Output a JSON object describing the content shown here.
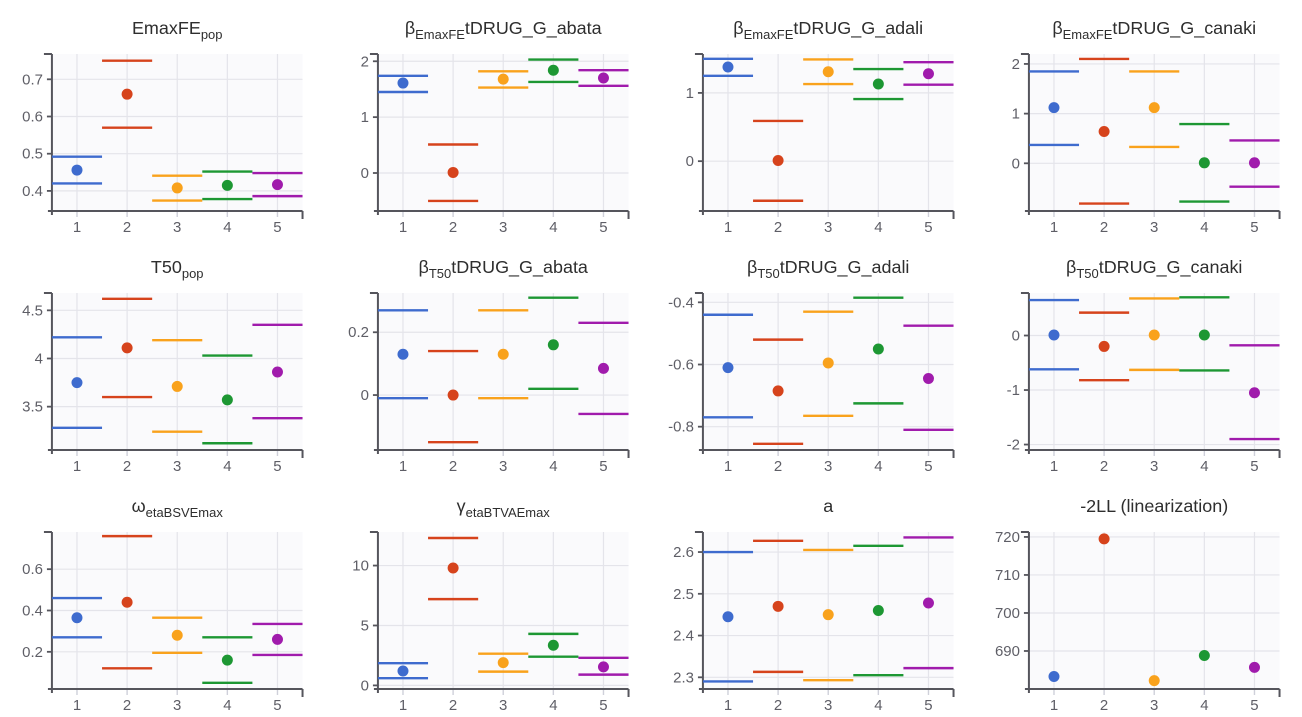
{
  "palette": {
    "group_colors": [
      "#3e6bce",
      "#d6431c",
      "#f9a21c",
      "#1d9733",
      "#a01bac"
    ],
    "group_color_order_note": "colors for runs x=1..5",
    "panel_bg": "#fafafc",
    "grid": "#e4e4ea",
    "x_tick": "#cfd0da",
    "axis": "#55555c",
    "tick_label": "#5e5e66",
    "title": "#2e2e2e"
  },
  "layout_hints": {
    "rows": 3,
    "columns": 4,
    "grid": "on",
    "legend": "none",
    "error_bar_style": "horizontal caps spanning run slot"
  },
  "chart_data": [
    {
      "id": "EmaxFE_pop",
      "type": "scatter",
      "title_parts": [
        {
          "text": "EmaxFE"
        },
        {
          "text": "pop",
          "sub": true
        }
      ],
      "xlim": [
        0.5,
        5.5
      ],
      "xticks": [
        1,
        2,
        3,
        4,
        5
      ],
      "xtick_labels": [
        "1",
        "2",
        "3",
        "4",
        "5"
      ],
      "ylim": [
        0.346,
        0.768
      ],
      "yticks": [
        0.4,
        0.5,
        0.6,
        0.7
      ],
      "ytick_labels": [
        "0.4",
        "0.5",
        "0.6",
        "0.7"
      ],
      "points": [
        {
          "x": 1,
          "est": 0.456,
          "lower": 0.42,
          "upper": 0.492
        },
        {
          "x": 2,
          "est": 0.66,
          "lower": 0.57,
          "upper": 0.75
        },
        {
          "x": 3,
          "est": 0.408,
          "lower": 0.374,
          "upper": 0.441
        },
        {
          "x": 4,
          "est": 0.415,
          "lower": 0.378,
          "upper": 0.452
        },
        {
          "x": 5,
          "est": 0.417,
          "lower": 0.386,
          "upper": 0.448
        }
      ]
    },
    {
      "id": "beta_EmaxFE_tDRUG_G_abata",
      "type": "scatter",
      "title_parts": [
        {
          "text": "β"
        },
        {
          "text": "EmaxFE",
          "sub": true
        },
        {
          "text": "tDRUG_G_abata"
        }
      ],
      "xlim": [
        0.5,
        5.5
      ],
      "xticks": [
        1,
        2,
        3,
        4,
        5
      ],
      "xtick_labels": [
        "1",
        "2",
        "3",
        "4",
        "5"
      ],
      "ylim": [
        -0.68,
        2.13
      ],
      "yticks": [
        0,
        1,
        2
      ],
      "ytick_labels": [
        "0",
        "1",
        "2"
      ],
      "points": [
        {
          "x": 1,
          "est": 1.61,
          "lower": 1.45,
          "upper": 1.74
        },
        {
          "x": 2,
          "est": 0.01,
          "lower": -0.5,
          "upper": 0.51
        },
        {
          "x": 3,
          "est": 1.68,
          "lower": 1.53,
          "upper": 1.82
        },
        {
          "x": 4,
          "est": 1.84,
          "lower": 1.63,
          "upper": 2.03
        },
        {
          "x": 5,
          "est": 1.7,
          "lower": 1.56,
          "upper": 1.84
        }
      ]
    },
    {
      "id": "beta_EmaxFE_tDRUG_G_adali",
      "type": "scatter",
      "title_parts": [
        {
          "text": "β"
        },
        {
          "text": "EmaxFE",
          "sub": true
        },
        {
          "text": "tDRUG_G_adali"
        }
      ],
      "xlim": [
        0.5,
        5.5
      ],
      "xticks": [
        1,
        2,
        3,
        4,
        5
      ],
      "xtick_labels": [
        "1",
        "2",
        "3",
        "4",
        "5"
      ],
      "ylim": [
        -0.73,
        1.57
      ],
      "yticks": [
        0,
        1
      ],
      "ytick_labels": [
        "0",
        "1"
      ],
      "points": [
        {
          "x": 1,
          "est": 1.38,
          "lower": 1.25,
          "upper": 1.5
        },
        {
          "x": 2,
          "est": 0.01,
          "lower": -0.58,
          "upper": 0.59
        },
        {
          "x": 3,
          "est": 1.31,
          "lower": 1.13,
          "upper": 1.49
        },
        {
          "x": 4,
          "est": 1.13,
          "lower": 0.91,
          "upper": 1.35
        },
        {
          "x": 5,
          "est": 1.28,
          "lower": 1.12,
          "upper": 1.45
        }
      ]
    },
    {
      "id": "beta_EmaxFE_tDRUG_G_canaki",
      "type": "scatter",
      "title_parts": [
        {
          "text": "β"
        },
        {
          "text": "EmaxFE",
          "sub": true
        },
        {
          "text": "tDRUG_G_canaki"
        }
      ],
      "xlim": [
        0.5,
        5.5
      ],
      "xticks": [
        1,
        2,
        3,
        4,
        5
      ],
      "xtick_labels": [
        "1",
        "2",
        "3",
        "4",
        "5"
      ],
      "ylim": [
        -0.96,
        2.2
      ],
      "yticks": [
        0,
        1,
        2
      ],
      "ytick_labels": [
        "0",
        "1",
        "2"
      ],
      "points": [
        {
          "x": 1,
          "est": 1.12,
          "lower": 0.37,
          "upper": 1.85
        },
        {
          "x": 2,
          "est": 0.64,
          "lower": -0.81,
          "upper": 2.1
        },
        {
          "x": 3,
          "est": 1.12,
          "lower": 0.33,
          "upper": 1.85
        },
        {
          "x": 4,
          "est": 0.01,
          "lower": -0.77,
          "upper": 0.79
        },
        {
          "x": 5,
          "est": 0.01,
          "lower": -0.47,
          "upper": 0.46
        }
      ]
    },
    {
      "id": "T50_pop",
      "type": "scatter",
      "title_parts": [
        {
          "text": "T50"
        },
        {
          "text": "pop",
          "sub": true
        }
      ],
      "xlim": [
        0.5,
        5.5
      ],
      "xticks": [
        1,
        2,
        3,
        4,
        5
      ],
      "xtick_labels": [
        "1",
        "2",
        "3",
        "4",
        "5"
      ],
      "ylim": [
        3.05,
        4.68
      ],
      "yticks": [
        3.5,
        4,
        4.5
      ],
      "ytick_labels": [
        "3.5",
        "4",
        "4.5"
      ],
      "points": [
        {
          "x": 1,
          "est": 3.75,
          "lower": 3.28,
          "upper": 4.22
        },
        {
          "x": 2,
          "est": 4.11,
          "lower": 3.6,
          "upper": 4.62
        },
        {
          "x": 3,
          "est": 3.71,
          "lower": 3.24,
          "upper": 4.19
        },
        {
          "x": 4,
          "est": 3.57,
          "lower": 3.12,
          "upper": 4.03
        },
        {
          "x": 5,
          "est": 3.86,
          "lower": 3.38,
          "upper": 4.35
        }
      ]
    },
    {
      "id": "beta_T50_tDRUG_G_abata",
      "type": "scatter",
      "title_parts": [
        {
          "text": "β"
        },
        {
          "text": "T50",
          "sub": true
        },
        {
          "text": "tDRUG_G_abata"
        }
      ],
      "xlim": [
        0.5,
        5.5
      ],
      "xticks": [
        1,
        2,
        3,
        4,
        5
      ],
      "xtick_labels": [
        "1",
        "2",
        "3",
        "4",
        "5"
      ],
      "ylim": [
        -0.175,
        0.325
      ],
      "yticks": [
        0,
        0.2
      ],
      "ytick_labels": [
        "0",
        "0.2"
      ],
      "points": [
        {
          "x": 1,
          "est": 0.13,
          "lower": -0.01,
          "upper": 0.27
        },
        {
          "x": 2,
          "est": 0.0,
          "lower": -0.15,
          "upper": 0.14
        },
        {
          "x": 3,
          "est": 0.13,
          "lower": -0.01,
          "upper": 0.27
        },
        {
          "x": 4,
          "est": 0.16,
          "lower": 0.02,
          "upper": 0.31
        },
        {
          "x": 5,
          "est": 0.085,
          "lower": -0.06,
          "upper": 0.23
        }
      ]
    },
    {
      "id": "beta_T50_tDRUG_G_adali",
      "type": "scatter",
      "title_parts": [
        {
          "text": "β"
        },
        {
          "text": "T50",
          "sub": true
        },
        {
          "text": "tDRUG_G_adali"
        }
      ],
      "xlim": [
        0.5,
        5.5
      ],
      "xticks": [
        1,
        2,
        3,
        4,
        5
      ],
      "xtick_labels": [
        "1",
        "2",
        "3",
        "4",
        "5"
      ],
      "ylim": [
        -0.875,
        -0.37
      ],
      "yticks": [
        -0.8,
        -0.6,
        -0.4
      ],
      "ytick_labels": [
        "-0.8",
        "-0.6",
        "-0.4"
      ],
      "points": [
        {
          "x": 1,
          "est": -0.61,
          "lower": -0.77,
          "upper": -0.44
        },
        {
          "x": 2,
          "est": -0.685,
          "lower": -0.855,
          "upper": -0.52
        },
        {
          "x": 3,
          "est": -0.595,
          "lower": -0.765,
          "upper": -0.43
        },
        {
          "x": 4,
          "est": -0.55,
          "lower": -0.725,
          "upper": -0.385
        },
        {
          "x": 5,
          "est": -0.645,
          "lower": -0.81,
          "upper": -0.475
        }
      ]
    },
    {
      "id": "beta_T50_tDRUG_G_canaki",
      "type": "scatter",
      "title_parts": [
        {
          "text": "β"
        },
        {
          "text": "T50",
          "sub": true
        },
        {
          "text": "tDRUG_G_canaki"
        }
      ],
      "xlim": [
        -2.1,
        0.78
      ],
      "xticks": [
        1,
        2,
        3,
        4,
        5
      ],
      "xtick_labels": [
        "1",
        "2",
        "3",
        "4",
        "5"
      ],
      "ylim": [
        -2.1,
        0.78
      ],
      "yticks": [
        -2,
        -1,
        0
      ],
      "ytick_labels": [
        "-2",
        "-1",
        "0"
      ],
      "points": [
        {
          "x": 1,
          "est": 0.01,
          "lower": -0.62,
          "upper": 0.65
        },
        {
          "x": 2,
          "est": -0.2,
          "lower": -0.82,
          "upper": 0.42
        },
        {
          "x": 3,
          "est": 0.01,
          "lower": -0.63,
          "upper": 0.68
        },
        {
          "x": 4,
          "est": 0.01,
          "lower": -0.64,
          "upper": 0.7
        },
        {
          "x": 5,
          "est": -1.05,
          "lower": -1.9,
          "upper": -0.18
        }
      ]
    },
    {
      "id": "omega_etaBSVEmax",
      "type": "scatter",
      "title_parts": [
        {
          "text": "ω"
        },
        {
          "text": "etaBSVEmax",
          "sub": true
        }
      ],
      "xlim": [
        0.5,
        5.5
      ],
      "xticks": [
        1,
        2,
        3,
        4,
        5
      ],
      "xtick_labels": [
        "1",
        "2",
        "3",
        "4",
        "5"
      ],
      "ylim": [
        0.02,
        0.78
      ],
      "yticks": [
        0.2,
        0.4,
        0.6
      ],
      "ytick_labels": [
        "0.2",
        "0.4",
        "0.6"
      ],
      "points": [
        {
          "x": 1,
          "est": 0.365,
          "lower": 0.27,
          "upper": 0.46
        },
        {
          "x": 2,
          "est": 0.44,
          "lower": 0.12,
          "upper": 0.76
        },
        {
          "x": 3,
          "est": 0.28,
          "lower": 0.195,
          "upper": 0.365
        },
        {
          "x": 4,
          "est": 0.16,
          "lower": 0.05,
          "upper": 0.27
        },
        {
          "x": 5,
          "est": 0.26,
          "lower": 0.185,
          "upper": 0.335
        }
      ]
    },
    {
      "id": "gamma_etaBTVAEmax",
      "type": "scatter",
      "title_parts": [
        {
          "text": "γ"
        },
        {
          "text": "etaBTVAEmax",
          "sub": true
        }
      ],
      "xlim": [
        0.5,
        5.5
      ],
      "xticks": [
        1,
        2,
        3,
        4,
        5
      ],
      "xtick_labels": [
        "1",
        "2",
        "3",
        "4",
        "5"
      ],
      "ylim": [
        -0.3,
        12.8
      ],
      "yticks": [
        0,
        5,
        10
      ],
      "ytick_labels": [
        "0",
        "5",
        "10"
      ],
      "points": [
        {
          "x": 1,
          "est": 1.2,
          "lower": 0.6,
          "upper": 1.85
        },
        {
          "x": 2,
          "est": 9.8,
          "lower": 7.2,
          "upper": 12.3
        },
        {
          "x": 3,
          "est": 1.9,
          "lower": 1.15,
          "upper": 2.65
        },
        {
          "x": 4,
          "est": 3.35,
          "lower": 2.4,
          "upper": 4.3
        },
        {
          "x": 5,
          "est": 1.55,
          "lower": 0.9,
          "upper": 2.3
        }
      ]
    },
    {
      "id": "a",
      "type": "scatter",
      "title_parts": [
        {
          "text": "a"
        }
      ],
      "xlim": [
        0.5,
        5.5
      ],
      "xticks": [
        1,
        2,
        3,
        4,
        5
      ],
      "xtick_labels": [
        "1",
        "2",
        "3",
        "4",
        "5"
      ],
      "ylim": [
        2.272,
        2.648
      ],
      "yticks": [
        2.3,
        2.4,
        2.5,
        2.6
      ],
      "ytick_labels": [
        "2.3",
        "2.4",
        "2.5",
        "2.6"
      ],
      "points": [
        {
          "x": 1,
          "est": 2.445,
          "lower": 2.29,
          "upper": 2.6
        },
        {
          "x": 2,
          "est": 2.47,
          "lower": 2.313,
          "upper": 2.627
        },
        {
          "x": 3,
          "est": 2.45,
          "lower": 2.293,
          "upper": 2.605
        },
        {
          "x": 4,
          "est": 2.46,
          "lower": 2.305,
          "upper": 2.615
        },
        {
          "x": 5,
          "est": 2.478,
          "lower": 2.322,
          "upper": 2.635
        }
      ]
    },
    {
      "id": "minus2LL_linearization",
      "type": "scatter",
      "title_parts": [
        {
          "text": "-2LL (linearization)"
        }
      ],
      "xlim": [
        0.5,
        5.5
      ],
      "xticks": [
        1,
        2,
        3,
        4,
        5
      ],
      "xtick_labels": [
        "1",
        "2",
        "3",
        "4",
        "5"
      ],
      "ylim": [
        680.0,
        721.3
      ],
      "yticks": [
        690,
        700,
        710,
        720
      ],
      "ytick_labels": [
        "690",
        "700",
        "710",
        "720"
      ],
      "points": [
        {
          "x": 1,
          "est": 683.3,
          "lower": null,
          "upper": null
        },
        {
          "x": 2,
          "est": 719.5,
          "lower": null,
          "upper": null
        },
        {
          "x": 3,
          "est": 682.2,
          "lower": null,
          "upper": null
        },
        {
          "x": 4,
          "est": 688.8,
          "lower": null,
          "upper": null
        },
        {
          "x": 5,
          "est": 685.7,
          "lower": null,
          "upper": null
        }
      ]
    }
  ]
}
